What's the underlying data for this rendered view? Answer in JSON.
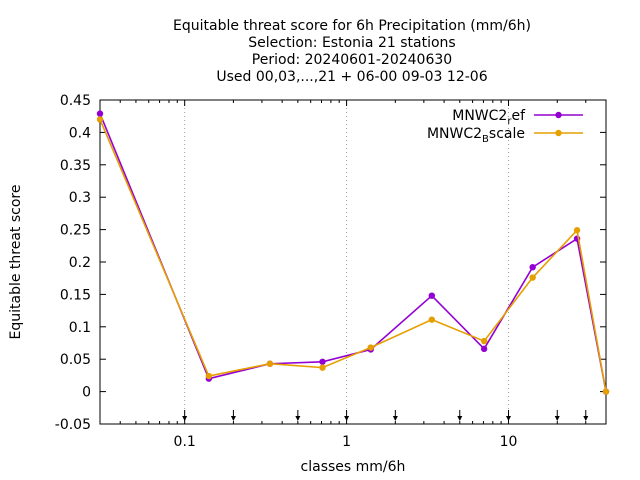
{
  "chart_data": {
    "type": "line",
    "title_lines": [
      "Equitable threat score  for 6h Precipitation (mm/6h)",
      "Selection: Estonia     21 stations",
      "Period: 20240601-20240630",
      "Used 00,03,...,21 + 06-00 09-03 12-06"
    ],
    "xlabel": "classes mm/6h",
    "ylabel": "Equitable threat score",
    "xscale": "log",
    "xlim": [
      0.03,
      40
    ],
    "ylim": [
      -0.05,
      0.45
    ],
    "xticks": [
      {
        "v": 0.1,
        "label": "0.1"
      },
      {
        "v": 1,
        "label": "1"
      },
      {
        "v": 10,
        "label": "10"
      }
    ],
    "yticks": [
      {
        "v": -0.05,
        "label": "-0.05"
      },
      {
        "v": 0,
        "label": "0"
      },
      {
        "v": 0.05,
        "label": "0.05"
      },
      {
        "v": 0.1,
        "label": "0.1"
      },
      {
        "v": 0.15,
        "label": "0.15"
      },
      {
        "v": 0.2,
        "label": "0.2"
      },
      {
        "v": 0.25,
        "label": "0.25"
      },
      {
        "v": 0.3,
        "label": "0.3"
      },
      {
        "v": 0.35,
        "label": "0.35"
      },
      {
        "v": 0.4,
        "label": "0.4"
      },
      {
        "v": 0.45,
        "label": "0.45"
      }
    ],
    "class_markers": [
      0.1,
      0.2,
      0.5,
      1,
      2,
      5,
      10,
      20,
      30
    ],
    "legend_position": "top-right",
    "series": [
      {
        "name_main": "MNWC2",
        "name_sub": "r",
        "name_rest": "ef",
        "color": "#9400d3",
        "x": [
          0.03,
          0.141,
          0.336,
          0.71,
          1.41,
          3.36,
          7.07,
          14.1,
          26.5,
          40
        ],
        "y": [
          0.429,
          0.02,
          0.043,
          0.046,
          0.065,
          0.148,
          0.066,
          0.192,
          0.236,
          0.0
        ]
      },
      {
        "name_main": "MNWC2",
        "name_sub": "B",
        "name_rest": "scale",
        "color": "#e69f00",
        "x": [
          0.03,
          0.141,
          0.336,
          0.71,
          1.41,
          3.36,
          7.07,
          14.1,
          26.5,
          40
        ],
        "y": [
          0.42,
          0.024,
          0.043,
          0.037,
          0.068,
          0.111,
          0.078,
          0.176,
          0.249,
          0.0
        ]
      }
    ]
  }
}
